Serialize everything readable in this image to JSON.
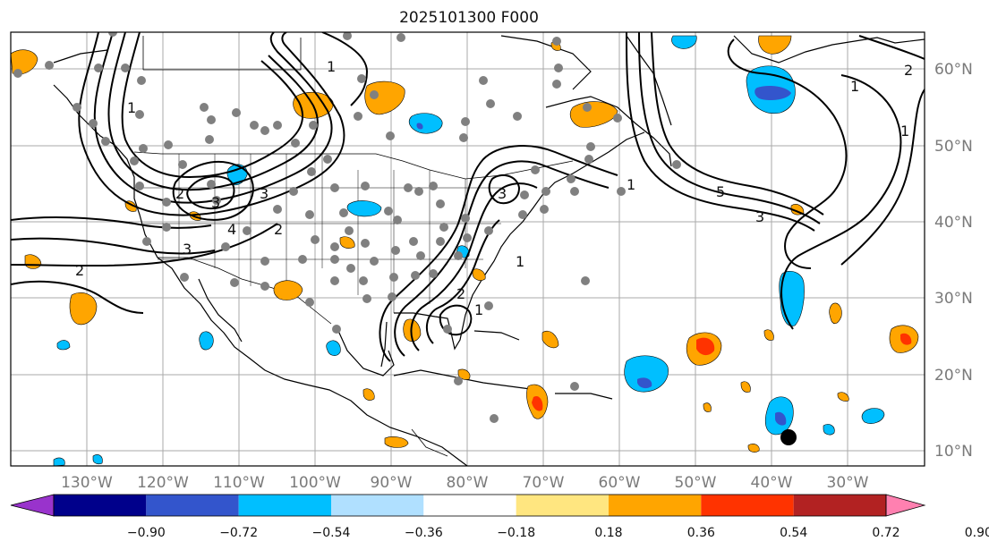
{
  "title": "2025101300 F000",
  "lon_labels": [
    "130°W",
    "120°W",
    "110°W",
    "100°W",
    "90°W",
    "80°W",
    "70°W",
    "60°W",
    "50°W",
    "40°W",
    "30°W"
  ],
  "lat_labels": [
    "60°N",
    "50°N",
    "40°N",
    "30°N",
    "20°N",
    "10°N"
  ],
  "colorbar": {
    "ticks": [
      "−0.90",
      "−0.72",
      "−0.54",
      "−0.36",
      "−0.18",
      "0.18",
      "0.36",
      "0.54",
      "0.72",
      "0.90"
    ],
    "colors": [
      "#9933cc",
      "#00008b",
      "#3355cc",
      "#00bfff",
      "#b0e0ff",
      "#ffffff",
      "#ffe680",
      "#ffa500",
      "#ff3300",
      "#b22222",
      "#ff80b0"
    ]
  },
  "contour_labels": [
    "1",
    "1",
    "2",
    "3",
    "2",
    "3",
    "4",
    "3",
    "2",
    "3",
    "1",
    "1",
    "2",
    "1",
    "5",
    "3",
    "1",
    "1",
    "2"
  ],
  "map": {
    "positive_color": "#ffa500",
    "positive_core": "#ff3300",
    "negative_color": "#00bfff",
    "negative_core": "#3355cc",
    "station_color": "#808080",
    "marker_color": "#000000"
  }
}
